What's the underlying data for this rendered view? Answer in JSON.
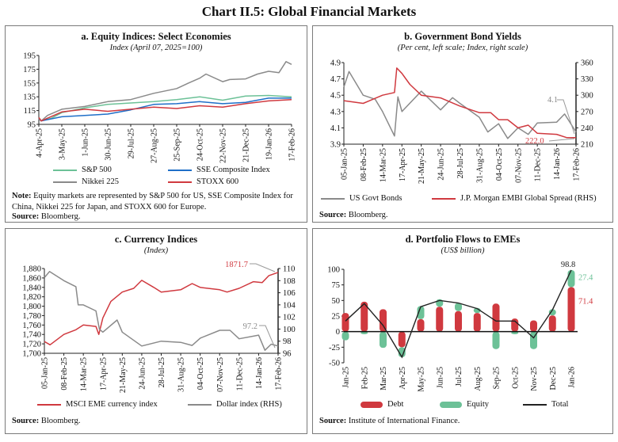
{
  "title": "Chart II.5: Global Financial Markets",
  "colors": {
    "green": "#6cc197",
    "blue": "#1f6fc8",
    "gray": "#8a8a8a",
    "red": "#d0393f",
    "black": "#222222"
  },
  "chart_data": [
    {
      "id": "a",
      "type": "line",
      "title": "a. Equity Indices: Select Economies",
      "subtitle": "Index (April 07, 2025=100)",
      "ylim": [
        95,
        195
      ],
      "yticks": [
        95,
        115,
        135,
        155,
        175,
        195
      ],
      "xticks": [
        "4-Apr-25",
        "3-May-25",
        "1-Jun-25",
        "30-Jun-25",
        "29-Jul-25",
        "27-Aug-25",
        "25-Sep-25",
        "24-Oct-25",
        "22-Nov-25",
        "21-Dec-25",
        "19-Jan-26",
        "17-Feb-26"
      ],
      "series": [
        {
          "name": "S&P 500",
          "color": "green",
          "axis": "left",
          "points": [
            [
              "2025-04-04",
              105
            ],
            [
              "2025-04-07",
              100
            ],
            [
              "2025-04-20",
              104
            ],
            [
              "2025-05-03",
              112
            ],
            [
              "2025-06-01",
              119
            ],
            [
              "2025-06-30",
              124
            ],
            [
              "2025-07-29",
              126
            ],
            [
              "2025-08-27",
              128
            ],
            [
              "2025-09-25",
              131
            ],
            [
              "2025-10-24",
              135
            ],
            [
              "2025-11-22",
              130
            ],
            [
              "2025-12-21",
              136
            ],
            [
              "2026-01-19",
              137
            ],
            [
              "2026-02-17",
              135
            ]
          ]
        },
        {
          "name": "SSE Composite Index",
          "color": "blue",
          "axis": "left",
          "points": [
            [
              "2025-04-04",
              103
            ],
            [
              "2025-04-07",
              100
            ],
            [
              "2025-05-03",
              106
            ],
            [
              "2025-06-01",
              108
            ],
            [
              "2025-06-30",
              110
            ],
            [
              "2025-07-29",
              116
            ],
            [
              "2025-08-27",
              124
            ],
            [
              "2025-09-25",
              125
            ],
            [
              "2025-10-24",
              128
            ],
            [
              "2025-11-22",
              125
            ],
            [
              "2025-12-21",
              127
            ],
            [
              "2026-01-19",
              133
            ],
            [
              "2026-02-17",
              133
            ]
          ]
        },
        {
          "name": "Nikkei 225",
          "color": "gray",
          "axis": "left",
          "points": [
            [
              "2025-04-04",
              103
            ],
            [
              "2025-04-07",
              100
            ],
            [
              "2025-04-15",
              108
            ],
            [
              "2025-05-03",
              117
            ],
            [
              "2025-06-01",
              121
            ],
            [
              "2025-06-30",
              128
            ],
            [
              "2025-07-29",
              131
            ],
            [
              "2025-08-27",
              140
            ],
            [
              "2025-09-25",
              147
            ],
            [
              "2025-10-10",
              155
            ],
            [
              "2025-10-24",
              162
            ],
            [
              "2025-11-01",
              168
            ],
            [
              "2025-11-22",
              157
            ],
            [
              "2025-12-01",
              160
            ],
            [
              "2025-12-21",
              161
            ],
            [
              "2026-01-05",
              168
            ],
            [
              "2026-01-19",
              172
            ],
            [
              "2026-02-01",
              170
            ],
            [
              "2026-02-10",
              186
            ],
            [
              "2026-02-17",
              182
            ]
          ]
        },
        {
          "name": "STOXX 600",
          "color": "red",
          "axis": "left",
          "points": [
            [
              "2025-04-04",
              105
            ],
            [
              "2025-04-07",
              100
            ],
            [
              "2025-05-03",
              113
            ],
            [
              "2025-06-01",
              117
            ],
            [
              "2025-06-30",
              114
            ],
            [
              "2025-07-29",
              117
            ],
            [
              "2025-08-27",
              120
            ],
            [
              "2025-09-25",
              118
            ],
            [
              "2025-10-24",
              122
            ],
            [
              "2025-11-22",
              120
            ],
            [
              "2025-12-21",
              125
            ],
            [
              "2026-01-19",
              129
            ],
            [
              "2026-02-17",
              131
            ]
          ]
        }
      ],
      "note_label": "Note:",
      "note": "Equity markets are represented by S&P 500 for US, SSE Composite Index for China, Nikkei 225 for Japan, and STOXX 600 for Europe.",
      "source_label": "Source:",
      "source": "Bloomberg."
    },
    {
      "id": "b",
      "type": "line",
      "title": "b. Government Bond Yields",
      "subtitle": "(Per cent, left scale; Index, right scale)",
      "ylim": [
        3.9,
        4.9
      ],
      "yticks": [
        "3.9",
        "4.1",
        "4.3",
        "4.5",
        "4.7",
        "4.9"
      ],
      "y2lim": [
        210,
        360
      ],
      "y2ticks": [
        210,
        240,
        270,
        300,
        330,
        360
      ],
      "xticks": [
        "05-Jan-25",
        "08-Feb-25",
        "14-Mar-25",
        "17-Apr-25",
        "21-May-25",
        "24-Jun-25",
        "28-Jul-25",
        "31-Aug-25",
        "04-Oct-25",
        "07-Nov-25",
        "11-Dec-25",
        "14-Jan-26",
        "17-Feb-26"
      ],
      "series": [
        {
          "name": "US Govt Bonds",
          "color": "gray",
          "axis": "left",
          "points": [
            [
              "2025-01-05",
              4.6
            ],
            [
              "2025-01-14",
              4.79
            ],
            [
              "2025-02-08",
              4.5
            ],
            [
              "2025-03-01",
              4.45
            ],
            [
              "2025-03-14",
              4.3
            ],
            [
              "2025-04-04",
              4.0
            ],
            [
              "2025-04-10",
              4.48
            ],
            [
              "2025-04-17",
              4.3
            ],
            [
              "2025-05-21",
              4.55
            ],
            [
              "2025-06-24",
              4.32
            ],
            [
              "2025-07-15",
              4.47
            ],
            [
              "2025-07-28",
              4.4
            ],
            [
              "2025-08-31",
              4.23
            ],
            [
              "2025-09-15",
              4.05
            ],
            [
              "2025-10-04",
              4.15
            ],
            [
              "2025-10-20",
              3.97
            ],
            [
              "2025-11-07",
              4.1
            ],
            [
              "2025-11-25",
              4.02
            ],
            [
              "2025-12-11",
              4.16
            ],
            [
              "2026-01-14",
              4.17
            ],
            [
              "2026-01-28",
              4.27
            ],
            [
              "2026-02-17",
              4.05
            ]
          ]
        },
        {
          "name": "J.P. Morgan EMBI Global Spread (RHS)",
          "color": "red",
          "axis": "right",
          "points": [
            [
              "2025-01-05",
              290
            ],
            [
              "2025-02-08",
              285
            ],
            [
              "2025-03-14",
              300
            ],
            [
              "2025-04-04",
              305
            ],
            [
              "2025-04-08",
              350
            ],
            [
              "2025-04-17",
              340
            ],
            [
              "2025-05-01",
              320
            ],
            [
              "2025-05-21",
              300
            ],
            [
              "2025-06-24",
              295
            ],
            [
              "2025-07-28",
              280
            ],
            [
              "2025-08-31",
              268
            ],
            [
              "2025-09-20",
              268
            ],
            [
              "2025-10-04",
              255
            ],
            [
              "2025-10-20",
              255
            ],
            [
              "2025-11-07",
              240
            ],
            [
              "2025-11-25",
              245
            ],
            [
              "2025-12-11",
              230
            ],
            [
              "2026-01-14",
              228
            ],
            [
              "2026-02-01",
              222
            ],
            [
              "2026-02-17",
              222
            ]
          ]
        }
      ],
      "annotations": [
        {
          "text": "4.1",
          "color": "gray"
        },
        {
          "text": "222.0",
          "color": "red"
        }
      ],
      "source_label": "Source:",
      "source": "Bloomberg."
    },
    {
      "id": "c",
      "type": "line",
      "title": "c. Currency Indices",
      "subtitle": "(Index)",
      "ylim": [
        1700,
        1880
      ],
      "yticks": [
        "1,700",
        "1,720",
        "1,740",
        "1,760",
        "1,780",
        "1,800",
        "1,820",
        "1,840",
        "1,860",
        "1,880"
      ],
      "y2lim": [
        96,
        110
      ],
      "y2ticks": [
        96,
        98,
        100,
        102,
        104,
        106,
        108,
        110
      ],
      "xticks": [
        "05-Jan-25",
        "08-Feb-25",
        "14-Mar-25",
        "17-Apr-25",
        "21-May-25",
        "24-Jun-25",
        "28-Jul-25",
        "31-Aug-25",
        "04-Oct-25",
        "07-Nov-25",
        "11-Dec-25",
        "14-Jan-26",
        "17-Feb-26"
      ],
      "series": [
        {
          "name": "MSCI EME currency index",
          "color": "red",
          "axis": "left",
          "points": [
            [
              "2025-01-05",
              1725
            ],
            [
              "2025-01-15",
              1718
            ],
            [
              "2025-02-08",
              1740
            ],
            [
              "2025-03-01",
              1750
            ],
            [
              "2025-03-14",
              1760
            ],
            [
              "2025-04-05",
              1757
            ],
            [
              "2025-04-10",
              1740
            ],
            [
              "2025-04-17",
              1775
            ],
            [
              "2025-05-01",
              1810
            ],
            [
              "2025-05-21",
              1830
            ],
            [
              "2025-06-10",
              1838
            ],
            [
              "2025-06-24",
              1855
            ],
            [
              "2025-07-15",
              1840
            ],
            [
              "2025-07-28",
              1830
            ],
            [
              "2025-08-31",
              1835
            ],
            [
              "2025-09-20",
              1848
            ],
            [
              "2025-10-04",
              1840
            ],
            [
              "2025-11-07",
              1835
            ],
            [
              "2025-11-20",
              1830
            ],
            [
              "2025-12-11",
              1838
            ],
            [
              "2026-01-05",
              1852
            ],
            [
              "2026-01-20",
              1850
            ],
            [
              "2026-02-01",
              1865
            ],
            [
              "2026-02-17",
              1871.7
            ]
          ]
        },
        {
          "name": "Dollar index (RHS)",
          "color": "gray",
          "axis": "right",
          "points": [
            [
              "2025-01-05",
              108.5
            ],
            [
              "2025-01-14",
              109.5
            ],
            [
              "2025-02-08",
              108
            ],
            [
              "2025-03-01",
              107
            ],
            [
              "2025-03-05",
              104
            ],
            [
              "2025-03-14",
              104
            ],
            [
              "2025-04-05",
              103
            ],
            [
              "2025-04-11",
              100
            ],
            [
              "2025-04-17",
              99.5
            ],
            [
              "2025-05-12",
              101.5
            ],
            [
              "2025-05-21",
              99.5
            ],
            [
              "2025-06-24",
              97.2
            ],
            [
              "2025-07-28",
              98
            ],
            [
              "2025-08-31",
              97.8
            ],
            [
              "2025-09-20",
              97.3
            ],
            [
              "2025-10-04",
              98.5
            ],
            [
              "2025-11-07",
              99.8
            ],
            [
              "2025-11-25",
              99.8
            ],
            [
              "2025-12-11",
              98.4
            ],
            [
              "2026-01-14",
              99
            ],
            [
              "2026-01-25",
              96.5
            ],
            [
              "2026-02-05",
              97.5
            ],
            [
              "2026-02-17",
              97.2
            ]
          ]
        }
      ],
      "annotations": [
        {
          "text": "1871.7",
          "color": "red"
        },
        {
          "text": "97.2",
          "color": "gray"
        }
      ],
      "source_label": "Source:",
      "source": "Bloomberg."
    },
    {
      "id": "d",
      "type": "bar",
      "title": "d. Portfolio Flows to EMEs",
      "subtitle": "(US$ billion)",
      "ylim": [
        -50,
        100
      ],
      "yticks": [
        -50,
        -25,
        0,
        25,
        50,
        75,
        100
      ],
      "categories": [
        "Jan-25",
        "Feb-25",
        "Mar-25",
        "Apr-25",
        "May-25",
        "Jun-25",
        "Jul-25",
        "Aug-25",
        "Sep-25",
        "Oct-25",
        "Nov-25",
        "Dec-25",
        "Jan-26"
      ],
      "series": [
        {
          "name": "Debt",
          "color": "red",
          "values": [
            30,
            48,
            36,
            -25,
            20,
            40,
            33,
            30,
            45,
            21,
            18,
            26,
            71.4
          ]
        },
        {
          "name": "Equity",
          "color": "green",
          "values": [
            -14,
            -4,
            -26,
            -16,
            21,
            12,
            13,
            8,
            -28,
            -4,
            -28,
            10,
            27.4
          ]
        },
        {
          "name": "Total",
          "color": "black",
          "values": [
            17,
            45,
            10,
            -41,
            40,
            50,
            46,
            37,
            17,
            17,
            -10,
            35,
            98.8
          ]
        }
      ],
      "annotations": [
        {
          "text": "98.8",
          "color": "black"
        },
        {
          "text": "27.4",
          "color": "green"
        },
        {
          "text": "71.4",
          "color": "red"
        }
      ],
      "source_label": "Source:",
      "source": "Institute of International Finance."
    }
  ]
}
